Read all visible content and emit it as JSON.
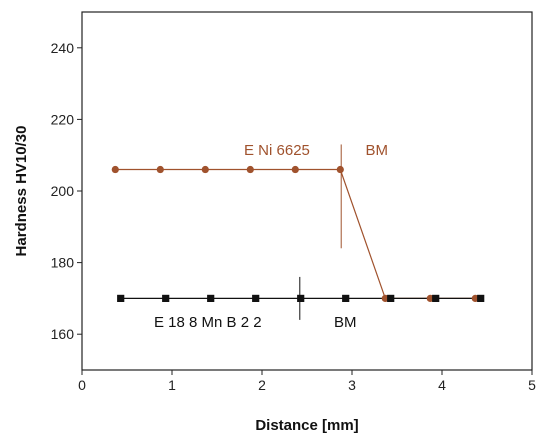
{
  "chart_data": {
    "type": "line",
    "xlabel": "Distance [mm]",
    "ylabel": "Hardness  HV10/30",
    "xlim": [
      0,
      5
    ],
    "ylim": [
      150,
      250
    ],
    "xticks": [
      0,
      1,
      2,
      3,
      4,
      5
    ],
    "yticks": [
      160,
      180,
      200,
      220,
      240
    ],
    "grid": false,
    "series": [
      {
        "color": "#a0522d",
        "marker": "circle",
        "x": [
          0.37,
          0.87,
          1.37,
          1.87,
          2.37,
          2.87,
          3.37,
          3.87,
          4.37
        ],
        "y": [
          206,
          206,
          206,
          206,
          206,
          206,
          170,
          170,
          170
        ]
      },
      {
        "color": "#111111",
        "marker": "square",
        "x": [
          0.43,
          0.93,
          1.43,
          1.93,
          2.43,
          2.93,
          3.43,
          3.93,
          4.43
        ],
        "y": [
          170,
          170,
          170,
          170,
          170,
          170,
          170,
          170,
          170
        ]
      }
    ],
    "annotations": [
      {
        "id": "brown-weld",
        "text": "E Ni 6625",
        "x": 1.8,
        "y": 210,
        "color": "#a0522d"
      },
      {
        "id": "brown-bm",
        "text": "BM",
        "x": 3.15,
        "y": 210,
        "color": "#a0522d"
      },
      {
        "id": "black-weld",
        "text": "E 18 8 Mn B 2 2",
        "x": 0.8,
        "y": 162,
        "color": "#111111"
      },
      {
        "id": "black-bm",
        "text": "BM",
        "x": 2.8,
        "y": 162,
        "color": "#111111"
      }
    ],
    "dividers": [
      {
        "x": 2.88,
        "y_low": 184,
        "y_high": 213,
        "color": "#a0522d"
      },
      {
        "x": 2.42,
        "y_low": 164,
        "y_high": 176,
        "color": "#111111"
      }
    ]
  }
}
